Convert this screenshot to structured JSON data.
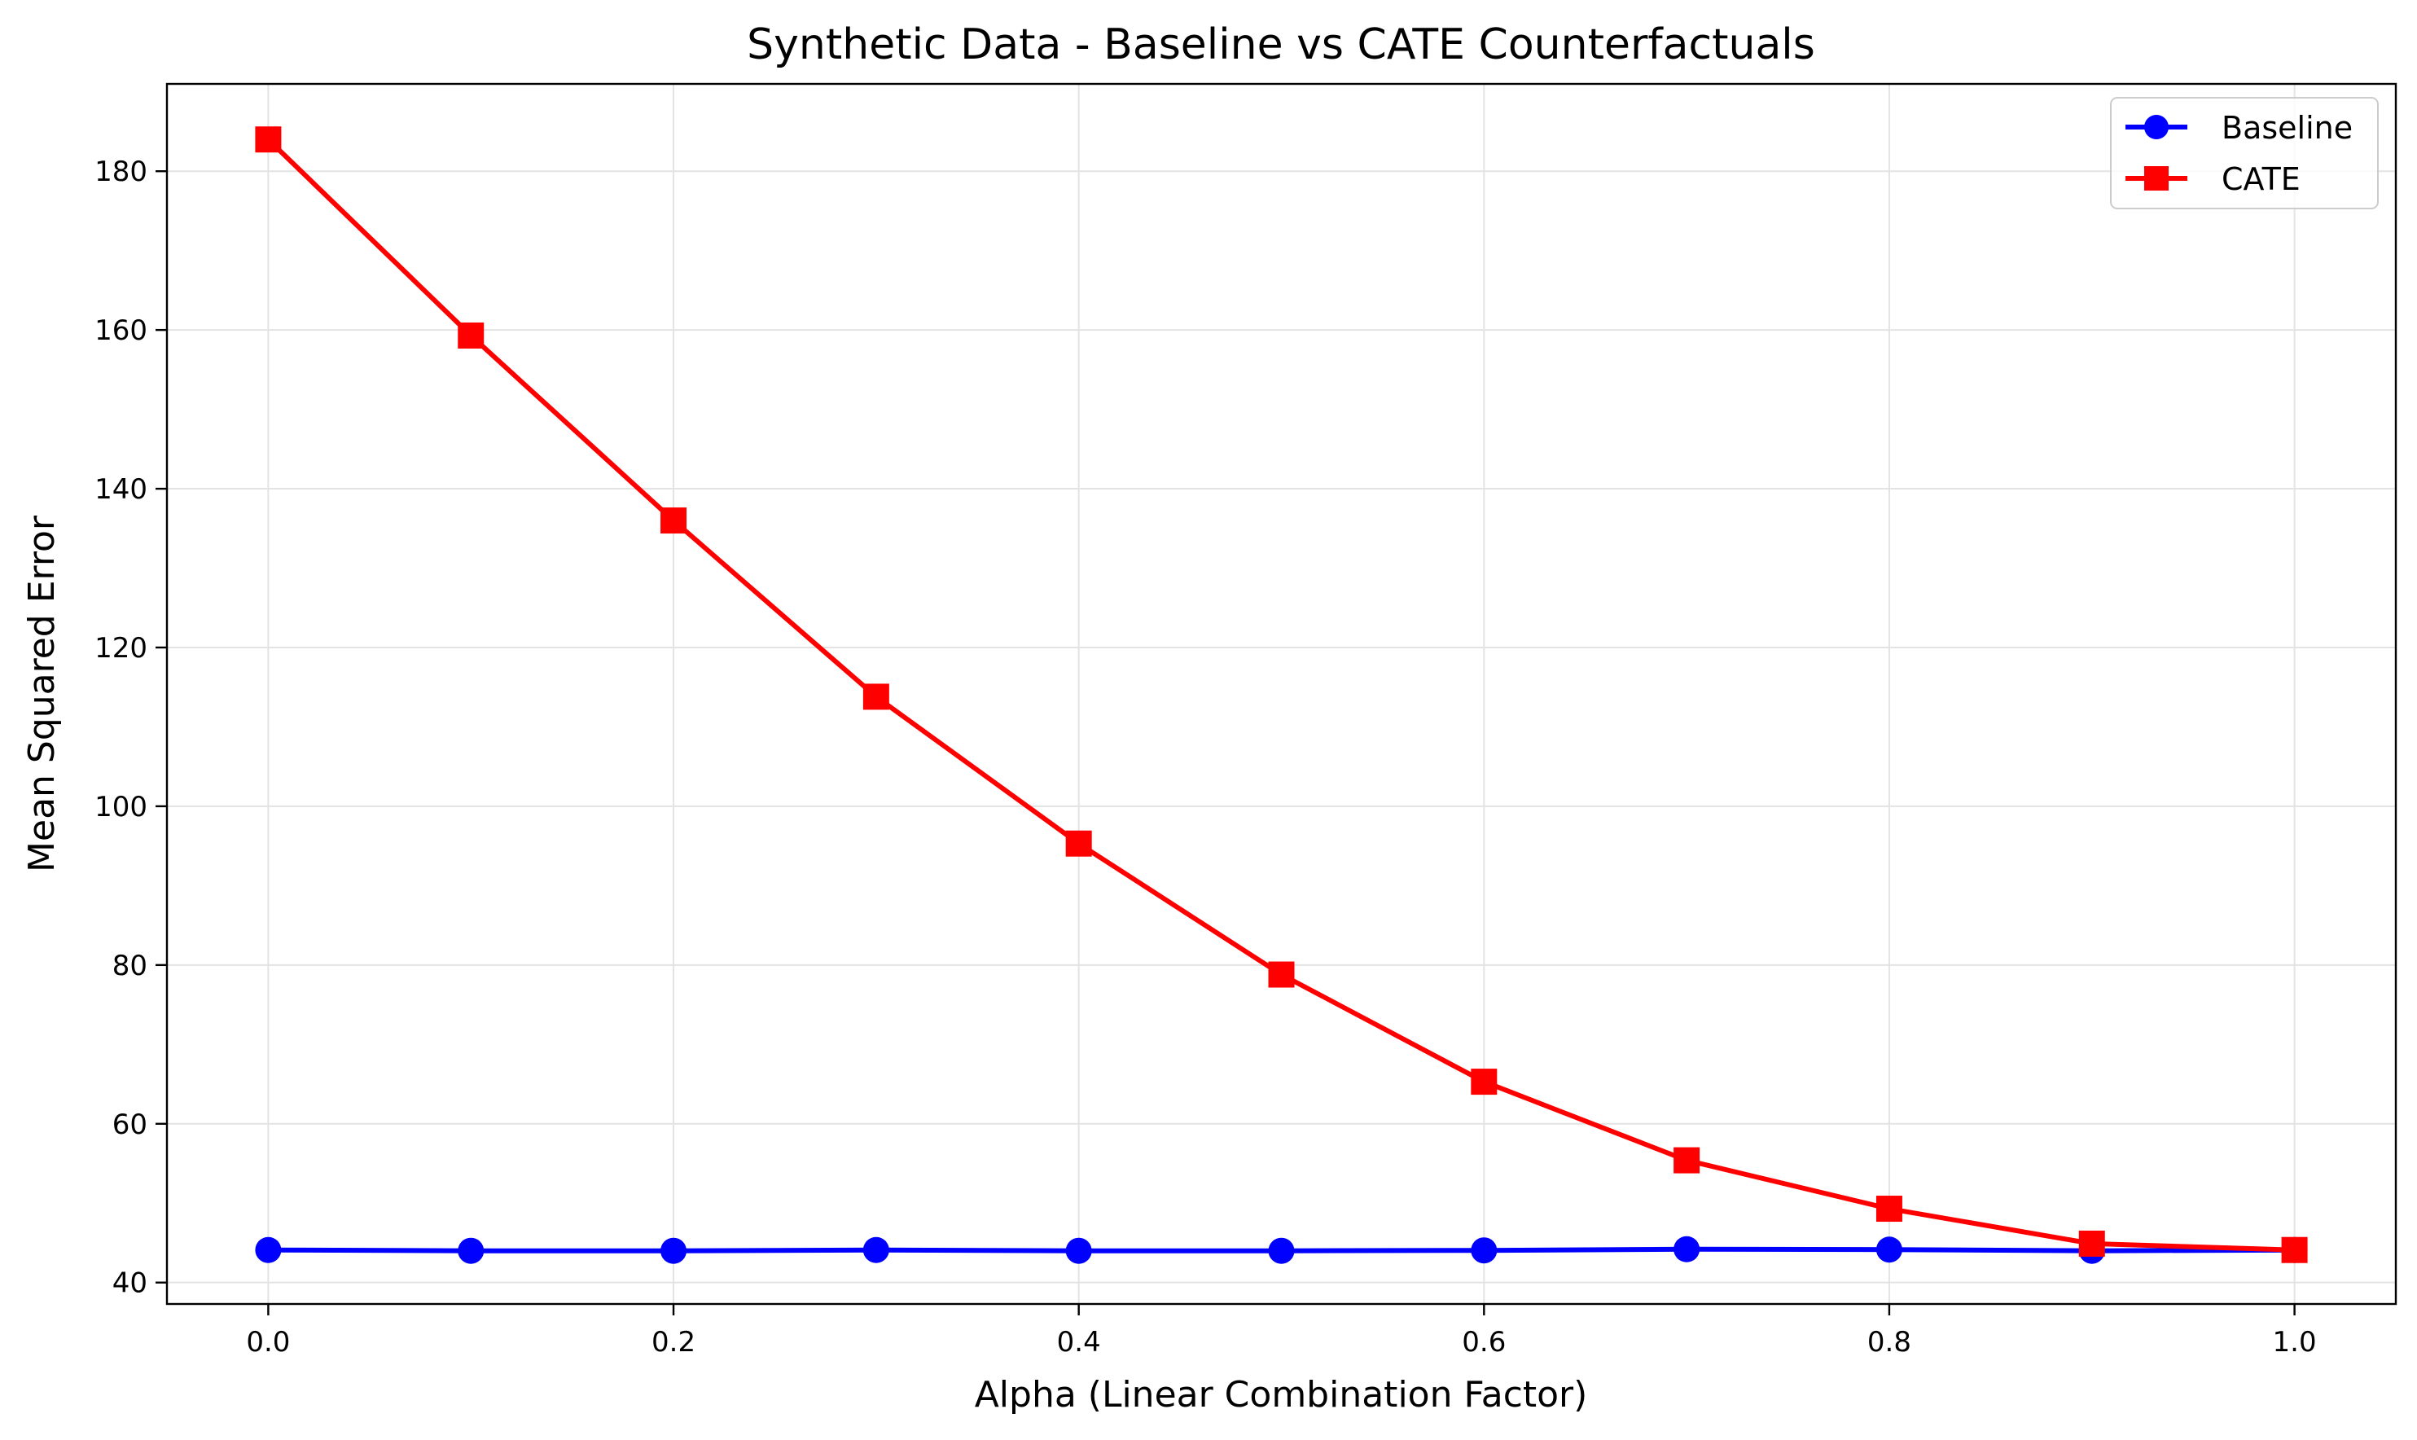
{
  "chart_data": {
    "type": "line",
    "title": "Synthetic Data - Baseline vs CATE Counterfactuals",
    "xlabel": "Alpha (Linear Combination Factor)",
    "ylabel": "Mean Squared Error",
    "x": [
      0.0,
      0.1,
      0.2,
      0.3,
      0.4,
      0.5,
      0.6,
      0.7,
      0.8,
      0.9,
      1.0
    ],
    "xlim": [
      -0.05,
      1.05
    ],
    "ylim": [
      37.3,
      191.0
    ],
    "xticks": [
      0.0,
      0.2,
      0.4,
      0.6,
      0.8,
      1.0
    ],
    "xtick_labels": [
      "0.0",
      "0.2",
      "0.4",
      "0.6",
      "0.8",
      "1.0"
    ],
    "yticks": [
      40,
      60,
      80,
      100,
      120,
      140,
      160,
      180
    ],
    "ytick_labels": [
      "40",
      "60",
      "80",
      "100",
      "120",
      "140",
      "160",
      "180"
    ],
    "grid": true,
    "legend_position": "top-right",
    "series": [
      {
        "name": "Baseline",
        "color": "#0000ff",
        "marker": "circle",
        "values": [
          44.1,
          44.0,
          44.0,
          44.1,
          44.0,
          44.0,
          44.05,
          44.2,
          44.15,
          44.0,
          44.1
        ]
      },
      {
        "name": "CATE",
        "color": "#ff0000",
        "marker": "square",
        "values": [
          184.0,
          159.3,
          136.0,
          113.8,
          95.3,
          78.8,
          65.3,
          55.4,
          49.3,
          44.9,
          44.1
        ]
      }
    ]
  }
}
